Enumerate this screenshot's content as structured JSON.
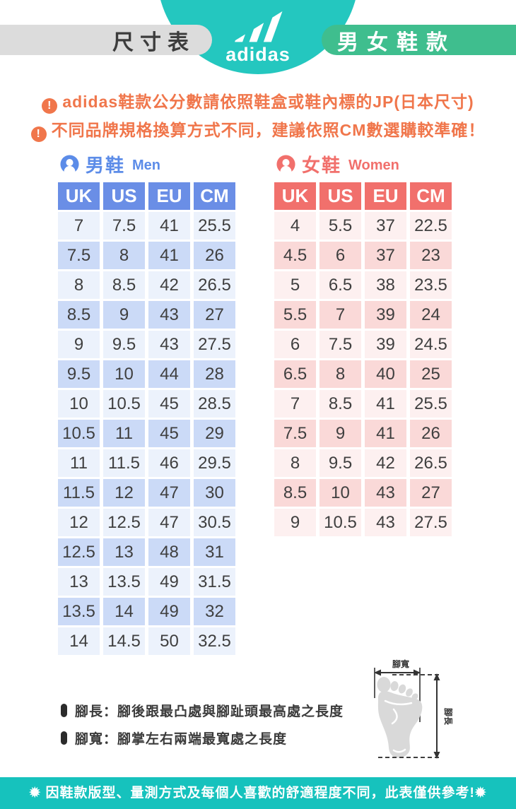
{
  "header": {
    "left_pill": "尺寸表",
    "right_pill": "男女鞋款",
    "brand": "adidas"
  },
  "notices": {
    "icon": "!",
    "items": [
      "adidas鞋款公分數請依照鞋盒或鞋內標的JP(日本尺寸)",
      "不同品牌規格換算方式不同，建議依照CM數選購較準確！"
    ]
  },
  "men": {
    "title": "男鞋",
    "subtitle": "Men",
    "columns": [
      "UK",
      "US",
      "EU",
      "CM"
    ],
    "rows": [
      [
        "7",
        "7.5",
        "41",
        "25.5"
      ],
      [
        "7.5",
        "8",
        "41",
        "26"
      ],
      [
        "8",
        "8.5",
        "42",
        "26.5"
      ],
      [
        "8.5",
        "9",
        "43",
        "27"
      ],
      [
        "9",
        "9.5",
        "43",
        "27.5"
      ],
      [
        "9.5",
        "10",
        "44",
        "28"
      ],
      [
        "10",
        "10.5",
        "45",
        "28.5"
      ],
      [
        "10.5",
        "11",
        "45",
        "29"
      ],
      [
        "11",
        "11.5",
        "46",
        "29.5"
      ],
      [
        "11.5",
        "12",
        "47",
        "30"
      ],
      [
        "12",
        "12.5",
        "47",
        "30.5"
      ],
      [
        "12.5",
        "13",
        "48",
        "31"
      ],
      [
        "13",
        "13.5",
        "49",
        "31.5"
      ],
      [
        "13.5",
        "14",
        "49",
        "32"
      ],
      [
        "14",
        "14.5",
        "50",
        "32.5"
      ]
    ]
  },
  "women": {
    "title": "女鞋",
    "subtitle": "Women",
    "columns": [
      "UK",
      "US",
      "EU",
      "CM"
    ],
    "rows": [
      [
        "4",
        "5.5",
        "37",
        "22.5"
      ],
      [
        "4.5",
        "6",
        "37",
        "23"
      ],
      [
        "5",
        "6.5",
        "38",
        "23.5"
      ],
      [
        "5.5",
        "7",
        "39",
        "24"
      ],
      [
        "6",
        "7.5",
        "39",
        "24.5"
      ],
      [
        "6.5",
        "8",
        "40",
        "25"
      ],
      [
        "7",
        "8.5",
        "41",
        "25.5"
      ],
      [
        "7.5",
        "9",
        "41",
        "26"
      ],
      [
        "8",
        "9.5",
        "42",
        "26.5"
      ],
      [
        "8.5",
        "10",
        "43",
        "27"
      ],
      [
        "9",
        "10.5",
        "43",
        "27.5"
      ]
    ]
  },
  "foot_diagram": {
    "width_label": "腳寬",
    "length_label": "腳長"
  },
  "legend": [
    "腳長：腳後跟最凸處與腳趾頭最高處之長度",
    "腳寬：腳掌左右兩端最寬處之長度"
  ],
  "footer": "✹ 因鞋款版型、量測方式及每個人喜歡的舒適程度不同，此表僅供參考!✹",
  "colors": {
    "teal": "#24C7BF",
    "green_pill": "#3FBE8E",
    "gray_pill": "#DCDCDC",
    "notice_orange": "#F0764B",
    "men_header_blue": "#6A8EE6",
    "men_row_light": "#ECF2FC",
    "men_row_dark": "#CBDAF7",
    "women_header_red": "#F1706C",
    "women_row_light": "#FDF0F0",
    "women_row_dark": "#FAD9D8",
    "text_dark": "#3F3F3F",
    "footer_teal": "#16C2BD",
    "foot_gray": "#D9D9D9"
  }
}
